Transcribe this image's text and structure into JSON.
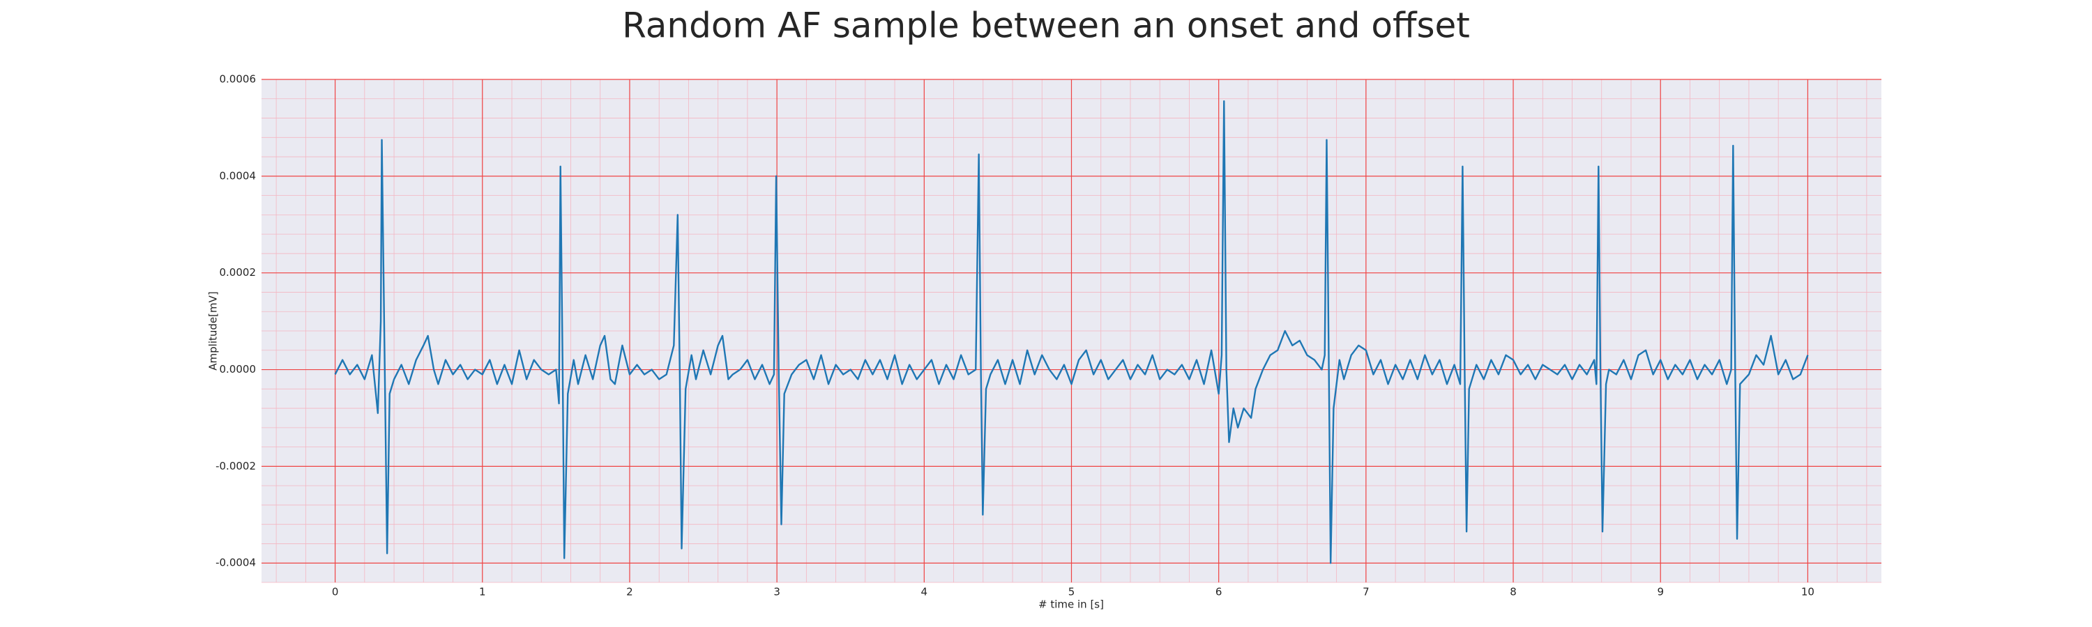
{
  "chart_data": {
    "type": "line",
    "title": "Random AF sample between an onset and offset",
    "x_label": "# time in [s]",
    "y_label": "Amplitude[mV]",
    "color": "#1f77b4",
    "grid": true,
    "minor_grid": true,
    "xlim": [
      -0.5,
      10.5
    ],
    "ylim": [
      -0.00044,
      0.0006
    ],
    "xticks": [
      0,
      1,
      2,
      3,
      4,
      5,
      6,
      7,
      8,
      9,
      10
    ],
    "yticks": [
      0.0006,
      0.0004,
      0.0002,
      {
        "value": 0,
        "label": "0.0000"
      },
      -0.0002,
      -0.0004
    ],
    "x": [
      0,
      0.05,
      0.1,
      0.15,
      0.2,
      0.25,
      0.29,
      0.31,
      0.317,
      0.335,
      0.353,
      0.37,
      0.4,
      0.45,
      0.5,
      0.55,
      0.6,
      0.63,
      0.67,
      0.7,
      0.75,
      0.8,
      0.85,
      0.9,
      0.95,
      1,
      1.05,
      1.1,
      1.15,
      1.2,
      1.25,
      1.3,
      1.35,
      1.4,
      1.45,
      1.5,
      1.52,
      1.53,
      1.545,
      1.556,
      1.58,
      1.62,
      1.65,
      1.7,
      1.75,
      1.8,
      1.83,
      1.87,
      1.9,
      1.95,
      2,
      2.05,
      2.1,
      2.15,
      2.2,
      2.25,
      2.3,
      2.326,
      2.34,
      2.353,
      2.38,
      2.42,
      2.45,
      2.5,
      2.55,
      2.6,
      2.63,
      2.67,
      2.7,
      2.75,
      2.8,
      2.85,
      2.9,
      2.95,
      2.98,
      2.995,
      3.012,
      3.03,
      3.05,
      3.1,
      3.15,
      3.2,
      3.25,
      3.3,
      3.35,
      3.4,
      3.45,
      3.5,
      3.55,
      3.6,
      3.65,
      3.7,
      3.75,
      3.8,
      3.85,
      3.9,
      3.95,
      4,
      4.05,
      4.1,
      4.15,
      4.2,
      4.25,
      4.3,
      4.35,
      4.371,
      4.385,
      4.398,
      4.42,
      4.45,
      4.5,
      4.55,
      4.6,
      4.65,
      4.7,
      4.75,
      4.8,
      4.85,
      4.9,
      4.95,
      5,
      5.05,
      5.1,
      5.15,
      5.2,
      5.25,
      5.3,
      5.35,
      5.4,
      5.45,
      5.5,
      5.55,
      5.6,
      5.65,
      5.7,
      5.75,
      5.8,
      5.85,
      5.9,
      5.95,
      6,
      6.02,
      6.036,
      6.052,
      6.07,
      6.1,
      6.13,
      6.17,
      6.22,
      6.25,
      6.3,
      6.35,
      6.4,
      6.45,
      6.5,
      6.55,
      6.6,
      6.65,
      6.7,
      6.72,
      6.733,
      6.748,
      6.76,
      6.78,
      6.82,
      6.85,
      6.9,
      6.95,
      7,
      7.05,
      7.1,
      7.15,
      7.2,
      7.25,
      7.3,
      7.35,
      7.4,
      7.45,
      7.5,
      7.55,
      7.6,
      7.64,
      7.656,
      7.67,
      7.683,
      7.7,
      7.75,
      7.8,
      7.85,
      7.9,
      7.95,
      8,
      8.05,
      8.1,
      8.15,
      8.2,
      8.25,
      8.3,
      8.35,
      8.4,
      8.45,
      8.5,
      8.55,
      8.565,
      8.579,
      8.592,
      8.606,
      8.63,
      8.65,
      8.7,
      8.75,
      8.8,
      8.85,
      8.9,
      8.95,
      9,
      9.05,
      9.1,
      9.15,
      9.2,
      9.25,
      9.3,
      9.35,
      9.4,
      9.45,
      9.48,
      9.493,
      9.507,
      9.52,
      9.54,
      9.6,
      9.65,
      9.7,
      9.75,
      9.8,
      9.85,
      9.9,
      9.95,
      10
    ],
    "values": [
      -1e-05,
      2e-05,
      -1e-05,
      1e-05,
      -2e-05,
      3e-05,
      -9e-05,
      0.0001,
      0.000475,
      5e-05,
      -0.00038,
      -5e-05,
      -2e-05,
      1e-05,
      -3e-05,
      2e-05,
      5e-05,
      7e-05,
      0,
      -3e-05,
      2e-05,
      -1e-05,
      1e-05,
      -2e-05,
      0,
      -1e-05,
      2e-05,
      -3e-05,
      1e-05,
      -3e-05,
      4e-05,
      -2e-05,
      2e-05,
      0,
      -1e-05,
      0,
      -7e-05,
      0.00042,
      0,
      -0.00039,
      -5e-05,
      2e-05,
      -3e-05,
      3e-05,
      -2e-05,
      5e-05,
      7e-05,
      -2e-05,
      -3e-05,
      5e-05,
      -1e-05,
      1e-05,
      -1e-05,
      0,
      -2e-05,
      -1e-05,
      5e-05,
      0.00032,
      0,
      -0.00037,
      -4e-05,
      3e-05,
      -2e-05,
      4e-05,
      -1e-05,
      5e-05,
      7e-05,
      -2e-05,
      -1e-05,
      0,
      2e-05,
      -2e-05,
      1e-05,
      -3e-05,
      -1e-05,
      0.0004,
      0,
      -0.00032,
      -5e-05,
      -1e-05,
      1e-05,
      2e-05,
      -2e-05,
      3e-05,
      -3e-05,
      1e-05,
      -1e-05,
      0,
      -2e-05,
      2e-05,
      -1e-05,
      2e-05,
      -2e-05,
      3e-05,
      -3e-05,
      1e-05,
      -2e-05,
      0,
      2e-05,
      -3e-05,
      1e-05,
      -2e-05,
      3e-05,
      -1e-05,
      0,
      0.000445,
      0,
      -0.0003,
      -4e-05,
      -1e-05,
      2e-05,
      -3e-05,
      2e-05,
      -3e-05,
      4e-05,
      -1e-05,
      3e-05,
      0,
      -2e-05,
      1e-05,
      -3e-05,
      2e-05,
      4e-05,
      -1e-05,
      2e-05,
      -2e-05,
      0,
      2e-05,
      -2e-05,
      1e-05,
      -1e-05,
      3e-05,
      -2e-05,
      0,
      -1e-05,
      1e-05,
      -2e-05,
      2e-05,
      -3e-05,
      4e-05,
      -5e-05,
      3e-05,
      0.000555,
      0,
      -0.00015,
      -8e-05,
      -0.00012,
      -8e-05,
      -0.0001,
      -4e-05,
      0,
      3e-05,
      4e-05,
      8e-05,
      5e-05,
      6e-05,
      3e-05,
      2e-05,
      0,
      3e-05,
      0.000475,
      0,
      -0.0004,
      -8e-05,
      2e-05,
      -2e-05,
      3e-05,
      5e-05,
      4e-05,
      -1e-05,
      2e-05,
      -3e-05,
      1e-05,
      -2e-05,
      2e-05,
      -2e-05,
      3e-05,
      -1e-05,
      2e-05,
      -3e-05,
      1e-05,
      -3e-05,
      0.00042,
      0,
      -0.000335,
      -4e-05,
      1e-05,
      -2e-05,
      2e-05,
      -1e-05,
      3e-05,
      2e-05,
      -1e-05,
      1e-05,
      -2e-05,
      1e-05,
      0,
      -1e-05,
      1e-05,
      -2e-05,
      1e-05,
      -1e-05,
      2e-05,
      -3e-05,
      0.00042,
      0,
      -0.000335,
      -3e-05,
      0,
      -1e-05,
      2e-05,
      -2e-05,
      3e-05,
      4e-05,
      -1e-05,
      2e-05,
      -2e-05,
      1e-05,
      -1e-05,
      2e-05,
      -2e-05,
      1e-05,
      -1e-05,
      2e-05,
      -3e-05,
      0,
      0.000463,
      0,
      -0.00035,
      -3e-05,
      -1e-05,
      3e-05,
      1e-05,
      7e-05,
      -1e-05,
      2e-05,
      -2e-05,
      -1e-05,
      3e-05
    ]
  }
}
